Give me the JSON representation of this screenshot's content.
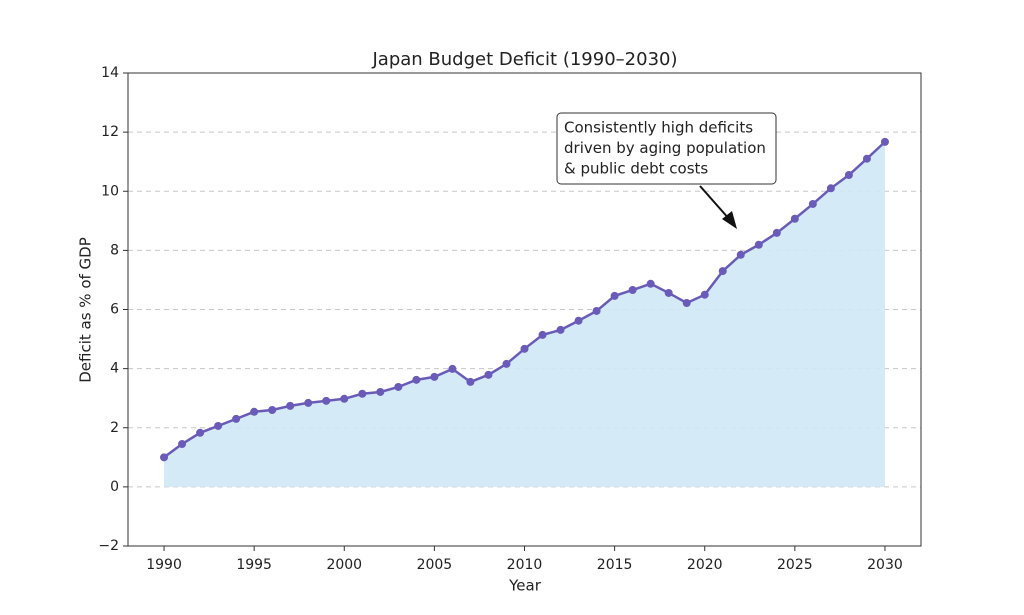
{
  "chart_data": {
    "type": "area-line",
    "title": "Japan Budget Deficit (1990–2030)",
    "xlabel": "Year",
    "ylabel": "Deficit as % of GDP",
    "x": [
      1990,
      1991,
      1992,
      1993,
      1994,
      1995,
      1996,
      1997,
      1998,
      1999,
      2000,
      2001,
      2002,
      2003,
      2004,
      2005,
      2006,
      2007,
      2008,
      2009,
      2010,
      2011,
      2012,
      2013,
      2014,
      2015,
      2016,
      2017,
      2018,
      2019,
      2020,
      2021,
      2022,
      2023,
      2024,
      2025,
      2026,
      2027,
      2028,
      2029,
      2030
    ],
    "series": [
      {
        "name": "Deficit",
        "color": "#6a5bb8",
        "fill": "#cfe8f6",
        "values": [
          1.0,
          1.45,
          1.83,
          2.06,
          2.3,
          2.54,
          2.6,
          2.74,
          2.84,
          2.91,
          2.98,
          3.15,
          3.21,
          3.38,
          3.62,
          3.72,
          3.99,
          3.55,
          3.79,
          4.16,
          4.67,
          5.14,
          5.31,
          5.62,
          5.95,
          6.46,
          6.66,
          6.87,
          6.56,
          6.22,
          6.5,
          7.3,
          7.85,
          8.19,
          8.59,
          9.07,
          9.57,
          10.1,
          10.55,
          11.1,
          11.67
        ]
      }
    ],
    "xlim": [
      1988,
      2032
    ],
    "xticks": [
      1990,
      1995,
      2000,
      2005,
      2010,
      2015,
      2020,
      2025,
      2030
    ],
    "ylim": [
      -2,
      14
    ],
    "yticks": [
      {
        "value": -2,
        "label": "−2"
      },
      0,
      2,
      4,
      6,
      8,
      10,
      12,
      14
    ],
    "grid": true,
    "annotation": {
      "lines": [
        "Consistently high deficits",
        "driven by aging population",
        "& public debt costs"
      ]
    }
  }
}
